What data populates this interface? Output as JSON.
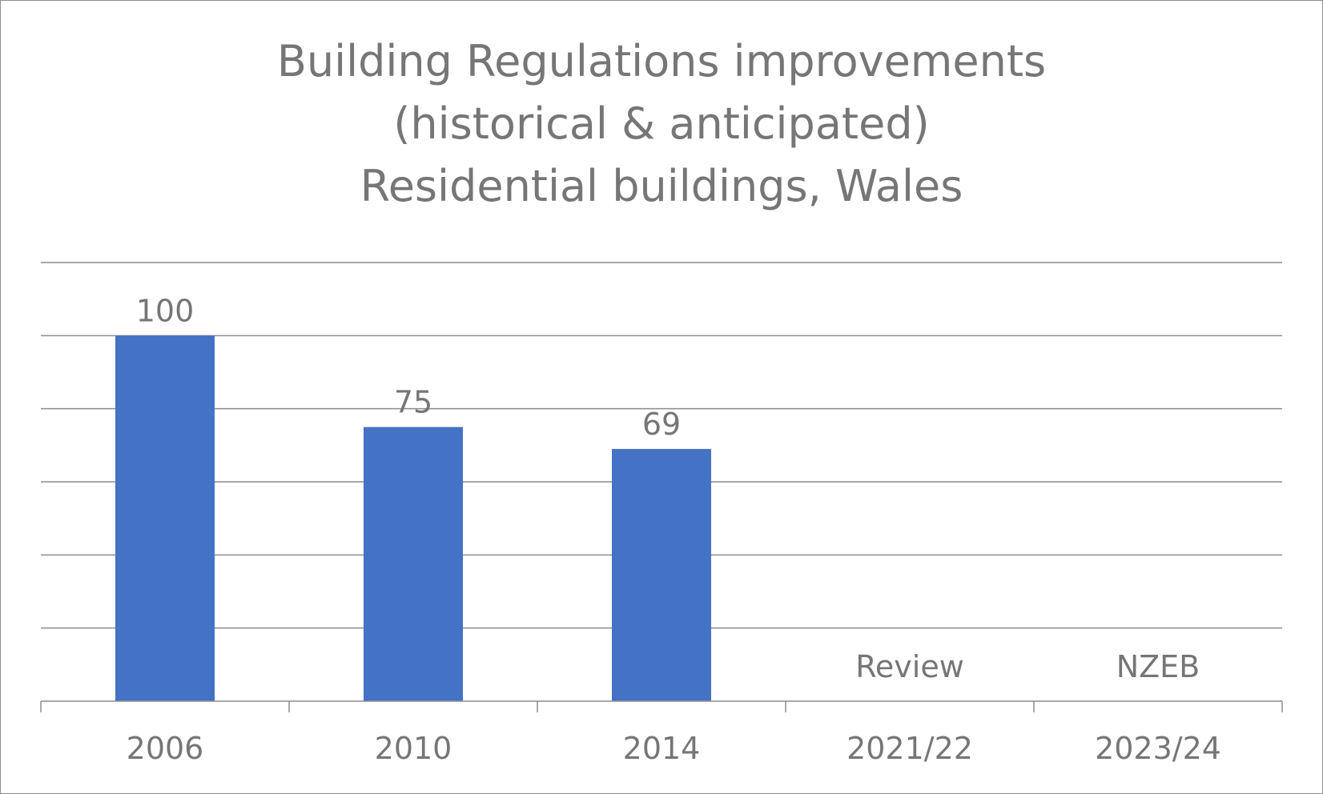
{
  "chart_data": {
    "type": "bar",
    "title": [
      "Building Regulations improvements",
      "(historical & anticipated)",
      "Residential buildings, Wales"
    ],
    "categories": [
      "2006",
      "2010",
      "2014",
      "2021/22",
      "2023/24"
    ],
    "values": [
      100,
      75,
      69,
      null,
      null
    ],
    "data_labels": [
      "100",
      "75",
      "69",
      "Review",
      "NZEB"
    ],
    "ylim": [
      0,
      120
    ],
    "gridline_step": 20,
    "grid": true,
    "legend": "none",
    "bar_color": "#4472C4",
    "grid_color": "#8c8c8c",
    "text_color": "#767676"
  }
}
